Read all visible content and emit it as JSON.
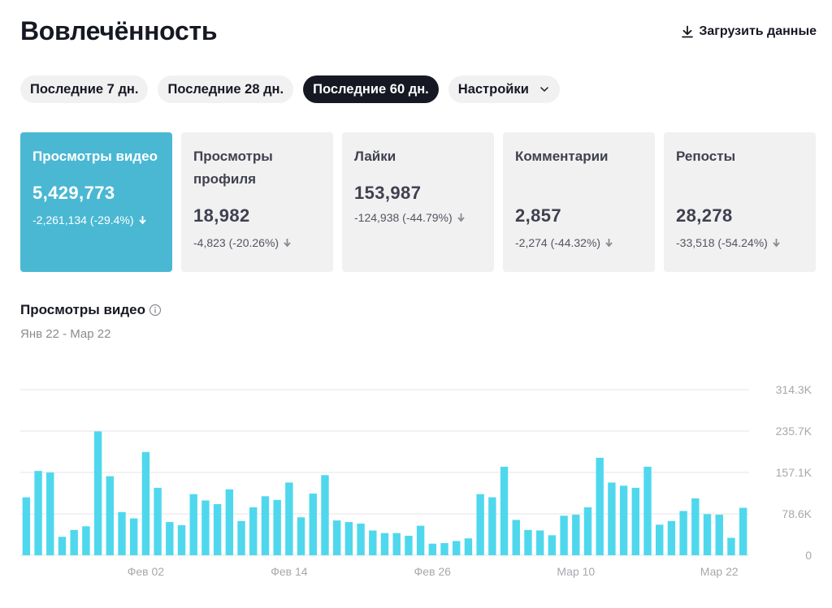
{
  "header": {
    "title": "Вовлечённость",
    "download_label": "Загрузить данные"
  },
  "periods": [
    {
      "label": "Последние 7 дн.",
      "active": false
    },
    {
      "label": "Последние 28 дн.",
      "active": false
    },
    {
      "label": "Последние 60 дн.",
      "active": true
    }
  ],
  "settings_label": "Настройки",
  "cards": [
    {
      "label": "Просмотры видео",
      "value": "5,429,773",
      "delta": "-2,261,134 (-29.4%)",
      "active": true
    },
    {
      "label": "Просмотры профиля",
      "value": "18,982",
      "delta": "-4,823 (-20.26%)",
      "active": false
    },
    {
      "label": "Лайки",
      "value": "153,987",
      "delta": "-124,938 (-44.79%)",
      "active": false
    },
    {
      "label": "Комментарии",
      "value": "2,857",
      "delta": "-2,274 (-44.32%)",
      "active": false
    },
    {
      "label": "Репосты",
      "value": "28,278",
      "delta": "-33,518 (-54.24%)",
      "active": false
    }
  ],
  "section": {
    "title": "Просмотры видео",
    "subtitle": "Янв 22 - Мар 22"
  },
  "colors": {
    "accent": "#4ab8d3",
    "bar": "#4fd8ed",
    "text": "#161823"
  },
  "chart_data": {
    "type": "bar",
    "ylim": [
      0,
      314300
    ],
    "y_ticks": [
      0,
      78600,
      157100,
      235700,
      314300
    ],
    "y_tick_labels": [
      "0",
      "78.6K",
      "157.1K",
      "235.7K",
      "314.3K"
    ],
    "x_tick_labels": [
      {
        "index": 10,
        "label": "Фев 02"
      },
      {
        "index": 22,
        "label": "Фев 14"
      },
      {
        "index": 34,
        "label": "Фев 26"
      },
      {
        "index": 46,
        "label": "Мар 10"
      },
      {
        "index": 58,
        "label": "Мар 22"
      }
    ],
    "values": [
      110000,
      160000,
      157000,
      35000,
      48000,
      55000,
      235000,
      150000,
      82000,
      70000,
      196000,
      128000,
      63000,
      57000,
      116000,
      104000,
      97000,
      125000,
      65000,
      91000,
      112000,
      105000,
      138000,
      72000,
      117000,
      152000,
      66000,
      63000,
      60000,
      47000,
      42000,
      42000,
      37000,
      56000,
      22000,
      23000,
      27000,
      32000,
      116000,
      110000,
      168000,
      67000,
      48000,
      47000,
      38000,
      75000,
      77000,
      91000,
      185000,
      138000,
      132000,
      128000,
      168000,
      58000,
      65000,
      84000,
      108000,
      78000,
      77000,
      33000,
      90000
    ]
  }
}
